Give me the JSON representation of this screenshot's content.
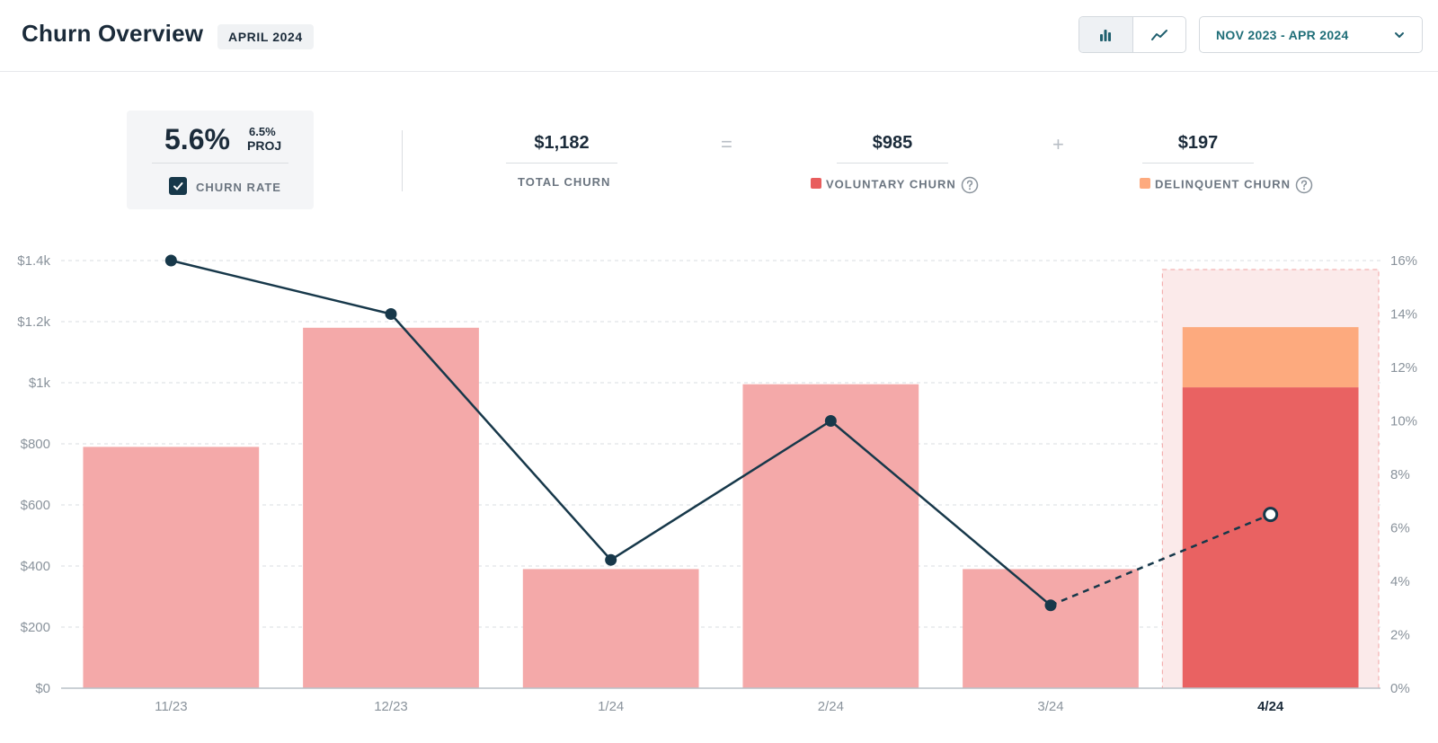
{
  "header": {
    "title": "Churn Overview",
    "month_badge": "APRIL 2024",
    "view_toggle": {
      "bar_icon": "bar-chart-icon",
      "line_icon": "line-chart-icon",
      "active": "bar"
    },
    "date_range": {
      "label": "NOV 2023 - APR 2024",
      "icon": "chevron-down-icon"
    }
  },
  "summary": {
    "churn_rate": {
      "value": "5.6%",
      "projected_value": "6.5%",
      "projected_label": "PROJ",
      "label": "CHURN RATE",
      "checked": true
    },
    "total_churn": {
      "value": "$1,182",
      "label": "TOTAL CHURN"
    },
    "equals_symbol": "=",
    "voluntary_churn": {
      "value": "$985",
      "label": "VOLUNTARY CHURN",
      "color": "#e85d5d"
    },
    "plus_symbol": "+",
    "delinquent_churn": {
      "value": "$197",
      "label": "DELINQUENT CHURN",
      "color": "#fdaa7e"
    }
  },
  "colors": {
    "past_bar": "#f4a9a9",
    "voluntary": "#e96262",
    "delinquent": "#fdaa7e",
    "line": "#17384a",
    "highlight_bg": "#fbeaea",
    "highlight_border": "#f2a3a3"
  },
  "chart_data": {
    "type": "bar",
    "categories": [
      "11/23",
      "12/23",
      "1/24",
      "2/24",
      "3/24",
      "4/24"
    ],
    "selected_category": "4/24",
    "series": [
      {
        "name": "Voluntary Churn",
        "values": [
          790,
          1180,
          390,
          995,
          390,
          985
        ]
      },
      {
        "name": "Delinquent Churn",
        "values": [
          0,
          0,
          0,
          0,
          0,
          197
        ]
      }
    ],
    "line_series": {
      "axis": "right",
      "values": [
        16,
        14,
        4.8,
        10,
        3.1,
        6.5
      ],
      "projected_from_index": 4
    },
    "ylim": [
      0,
      1400
    ],
    "y_ticks": [
      "$0",
      "$200",
      "$400",
      "$600",
      "$800",
      "$1k",
      "$1.2k",
      "$1.4k"
    ],
    "y2lim": [
      0,
      16
    ],
    "y2_ticks": [
      "0%",
      "2%",
      "4%",
      "6%",
      "8%",
      "10%",
      "12%",
      "14%",
      "16%"
    ],
    "grid": true
  }
}
